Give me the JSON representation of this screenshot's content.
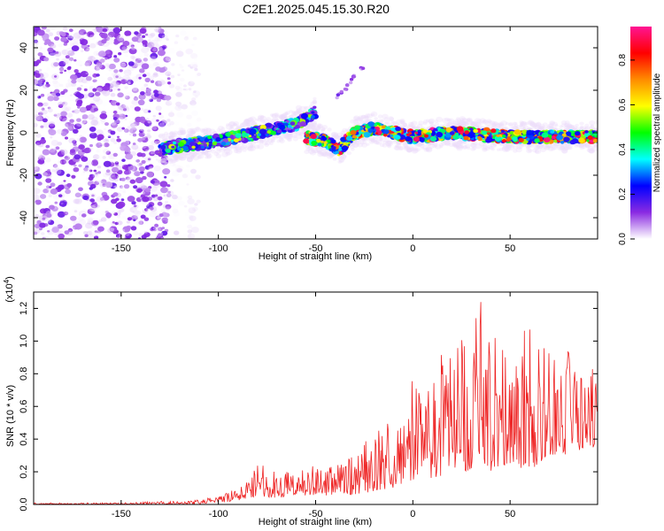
{
  "title": "C2E1.2025.045.15.30.R20",
  "chart_data": [
    {
      "type": "heatmap",
      "xlabel": "Height of straight line (km)",
      "ylabel": "Frequency (Hz)",
      "xlim": [
        -195,
        95
      ],
      "ylim": [
        -50,
        50
      ],
      "x_ticks": [
        -150,
        -100,
        -50,
        0,
        50
      ],
      "y_ticks": [
        -40,
        -20,
        0,
        20,
        40
      ],
      "colorbar": {
        "label": "Normalized spectral amplitude",
        "range": [
          0.0,
          0.95
        ],
        "ticks": [
          0.0,
          0.2,
          0.4,
          0.6,
          0.8
        ],
        "colormap": [
          "#ffffff",
          "#8a2be2",
          "#0000ff",
          "#00ffff",
          "#00ff00",
          "#ffff00",
          "#ff8c00",
          "#ff0000",
          "#ff1493"
        ]
      },
      "features": [
        {
          "region": "noise",
          "x_range": [
            -195,
            -125
          ],
          "y_range": [
            -50,
            50
          ],
          "amplitude": [
            0.0,
            0.15
          ]
        },
        {
          "region": "sparse",
          "x_range": [
            -125,
            -110
          ],
          "y_range": [
            -50,
            50
          ],
          "amplitude": [
            0.0,
            0.05
          ]
        },
        {
          "region": "ridge",
          "points": [
            [
              -130,
              -8
            ],
            [
              -120,
              -6
            ],
            [
              -100,
              -4
            ],
            [
              -80,
              0
            ],
            [
              -60,
              4
            ],
            [
              -50,
              10
            ]
          ],
          "amplitude": [
            0.1,
            0.6
          ]
        },
        {
          "region": "ridge",
          "points": [
            [
              -55,
              -2
            ],
            [
              -45,
              -4
            ],
            [
              -38,
              -8
            ],
            [
              -30,
              0
            ],
            [
              -20,
              2
            ],
            [
              -10,
              0
            ],
            [
              0,
              -2
            ],
            [
              20,
              0
            ],
            [
              50,
              -2
            ],
            [
              95,
              -2
            ]
          ],
          "amplitude": [
            0.2,
            0.95
          ]
        },
        {
          "region": "trace",
          "points": [
            [
              -40,
              16
            ],
            [
              -35,
              20
            ],
            [
              -28,
              30
            ],
            [
              -25,
              31
            ]
          ],
          "amplitude": [
            0.05,
            0.15
          ]
        }
      ]
    },
    {
      "type": "line",
      "xlabel": "Height of straight line (km)",
      "ylabel": "SNR (10 * v/v)",
      "y_multiplier": "(x10",
      "y_exponent": "4",
      "y_multiplier_close": ")",
      "xlim": [
        -195,
        95
      ],
      "ylim": [
        0,
        1.3
      ],
      "x_ticks": [
        -150,
        -100,
        -50,
        0,
        50
      ],
      "y_ticks": [
        0.0,
        0.2,
        0.4,
        0.6,
        0.8,
        1.0,
        1.2
      ],
      "series_color": "#ee2222",
      "series": [
        {
          "x": [
            -195,
            -150,
            -130,
            -120,
            -110,
            -100,
            -90,
            -85,
            -80,
            -70,
            -60,
            -50,
            -40,
            -30,
            -20,
            -10,
            0,
            10,
            20,
            30,
            35,
            40,
            50,
            60,
            70,
            80,
            90,
            95
          ],
          "envelope_low": [
            0.0,
            0.0,
            0.0,
            0.0,
            0.0,
            0.01,
            0.02,
            0.04,
            0.05,
            0.04,
            0.05,
            0.05,
            0.06,
            0.06,
            0.08,
            0.1,
            0.15,
            0.15,
            0.2,
            0.2,
            0.25,
            0.2,
            0.25,
            0.2,
            0.3,
            0.3,
            0.35,
            0.35
          ],
          "envelope_high": [
            0.01,
            0.01,
            0.02,
            0.02,
            0.03,
            0.05,
            0.1,
            0.15,
            0.27,
            0.2,
            0.22,
            0.25,
            0.25,
            0.3,
            0.45,
            0.55,
            0.78,
            0.85,
            1.0,
            1.1,
            1.28,
            1.05,
            1.0,
            1.1,
            0.95,
            0.95,
            0.9,
            0.8
          ]
        }
      ]
    }
  ]
}
